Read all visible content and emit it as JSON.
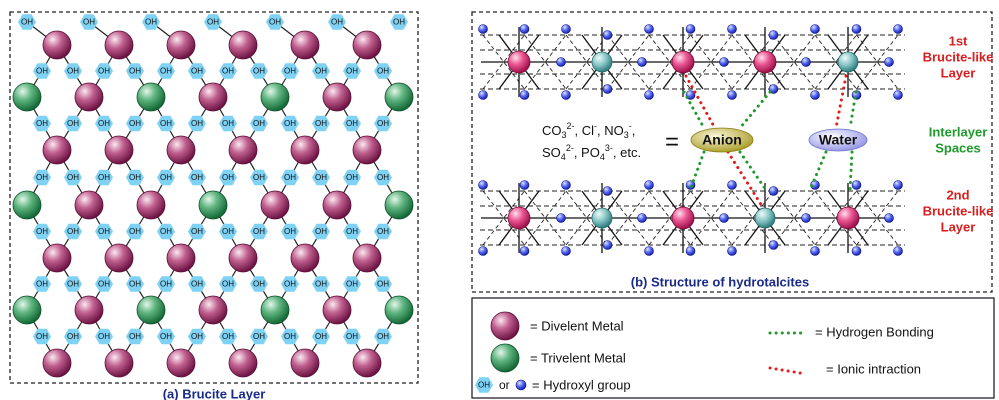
{
  "panel_a": {
    "caption": "(a) Brucite Layer",
    "hydroxyl_label": "OH"
  },
  "panel_b": {
    "caption": "(b) Structure of hydrotalcites",
    "layer_1": [
      "1st",
      "Brucite-like",
      "Layer"
    ],
    "interlayer": [
      "Interlayer",
      "Spaces"
    ],
    "layer_2": [
      "2nd",
      "Brucite-like",
      "Layer"
    ],
    "anion": "Anion",
    "water": "Water",
    "equals": "=",
    "anion_formula": [
      [
        {
          "t": "CO"
        },
        {
          "t": "3",
          "s": "sub"
        },
        {
          "t": "2-",
          "s": "sup"
        },
        {
          "t": ", Cl"
        },
        {
          "t": "-",
          "s": "sup"
        },
        {
          "t": ", NO"
        },
        {
          "t": "3",
          "s": "sub"
        },
        {
          "t": "-",
          "s": "sup"
        },
        {
          "t": ","
        }
      ],
      [
        {
          "t": "SO"
        },
        {
          "t": "4",
          "s": "sub"
        },
        {
          "t": "2-",
          "s": "sup"
        },
        {
          "t": ", PO"
        },
        {
          "t": "4",
          "s": "sub"
        },
        {
          "t": "3-",
          "s": "sup"
        },
        {
          "t": ", etc."
        }
      ]
    ]
  },
  "legend": {
    "divalent": "= Divelent Metal",
    "trivalent": "= Trivelent Metal",
    "hydroxyl_oh": "OH",
    "hydroxyl_or": "or",
    "hydroxyl": "= Hydroxyl group",
    "hydrogen_bonding": "= Hydrogen Bonding",
    "ionic": "= Ionic intraction"
  }
}
